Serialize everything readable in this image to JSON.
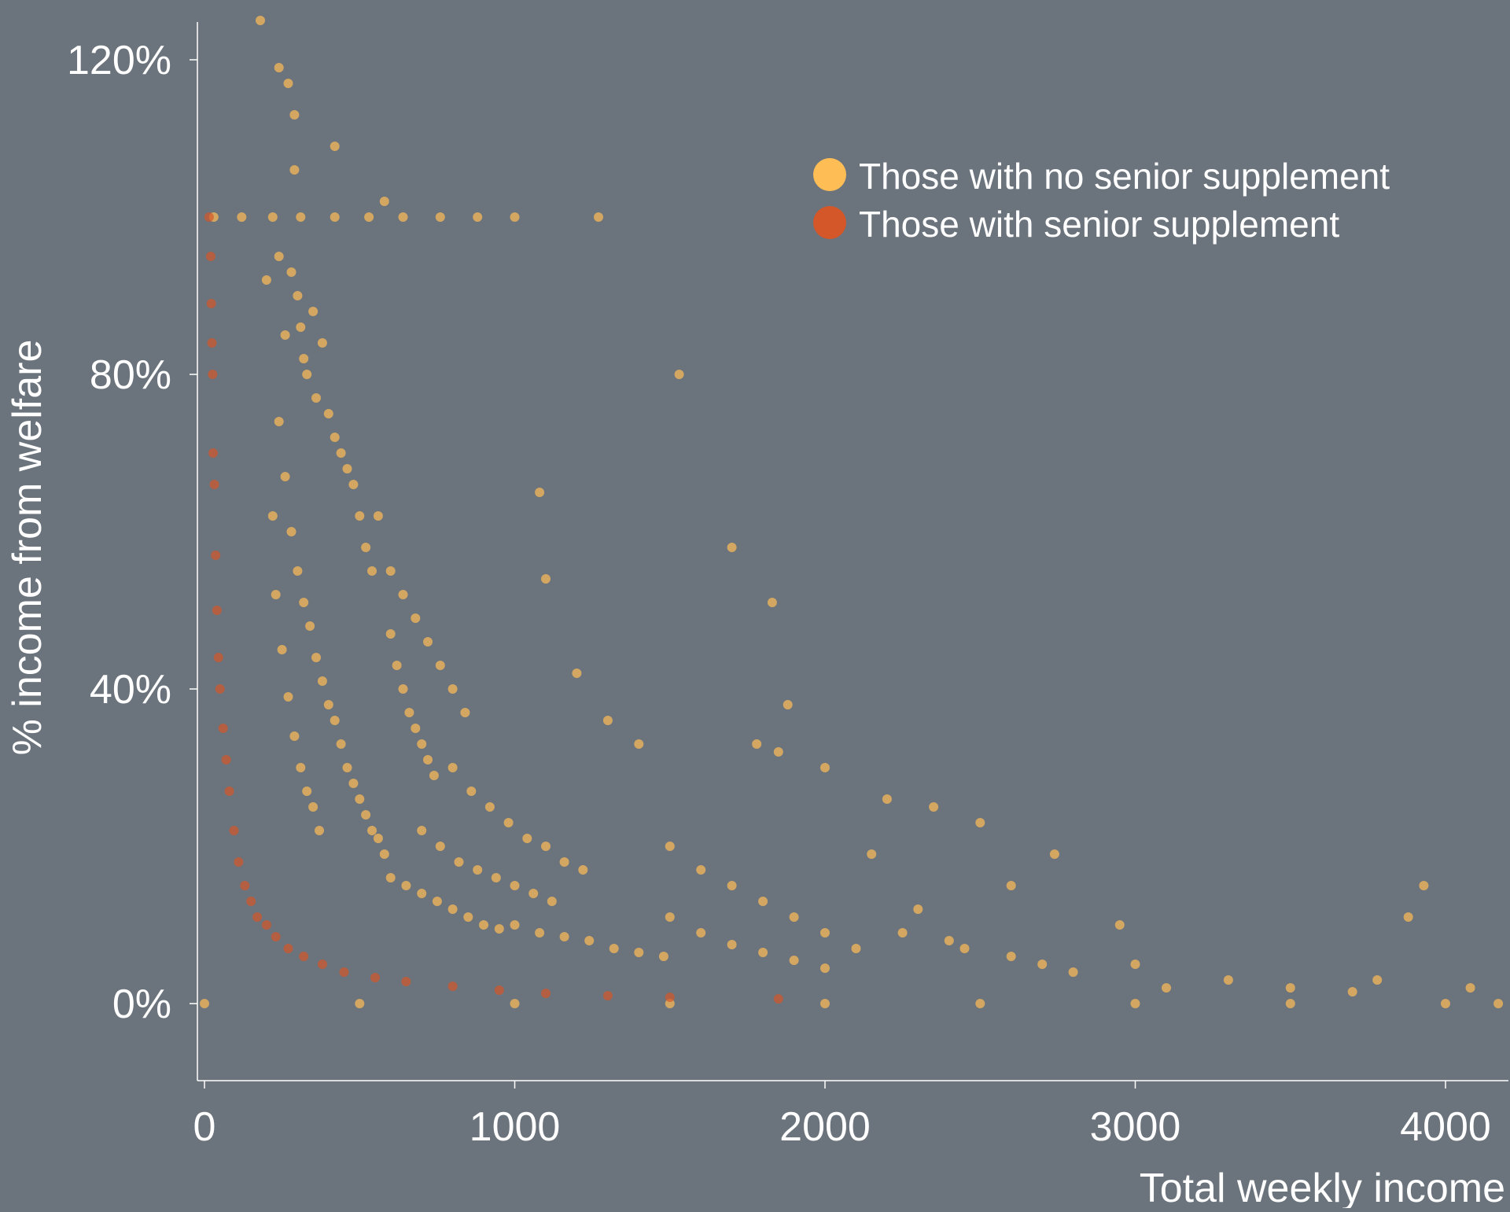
{
  "background_color": "#6b737c",
  "chart_data": {
    "type": "scatter",
    "title": "",
    "xlabel": "Total weekly income",
    "ylabel": "% income from welfare",
    "xlim": [
      -30,
      4200
    ],
    "ylim": [
      -0.1,
      1.25
    ],
    "x_ticks": [
      0,
      1000,
      2000,
      3000,
      4000
    ],
    "x_tick_labels": [
      "0",
      "1000",
      "2000",
      "3000",
      "4000"
    ],
    "y_ticks": [
      0,
      0.4,
      0.8,
      1.2
    ],
    "y_tick_labels": [
      "0%",
      "40%",
      "80%",
      "120%"
    ],
    "grid": false,
    "legend_position": "top-right",
    "series": [
      {
        "name": "Those with no senior supplement",
        "color": "#ffbe55",
        "points": [
          [
            30,
            1.0
          ],
          [
            120,
            1.0
          ],
          [
            220,
            1.0
          ],
          [
            310,
            1.0
          ],
          [
            420,
            1.0
          ],
          [
            530,
            1.0
          ],
          [
            640,
            1.0
          ],
          [
            760,
            1.0
          ],
          [
            880,
            1.0
          ],
          [
            1000,
            1.0
          ],
          [
            1270,
            1.0
          ],
          [
            180,
            1.25
          ],
          [
            240,
            1.19
          ],
          [
            270,
            1.17
          ],
          [
            290,
            1.13
          ],
          [
            420,
            1.09
          ],
          [
            580,
            1.02
          ],
          [
            290,
            1.06
          ],
          [
            200,
            0.92
          ],
          [
            240,
            0.95
          ],
          [
            260,
            0.85
          ],
          [
            280,
            0.93
          ],
          [
            300,
            0.9
          ],
          [
            310,
            0.86
          ],
          [
            320,
            0.82
          ],
          [
            330,
            0.8
          ],
          [
            350,
            0.88
          ],
          [
            360,
            0.77
          ],
          [
            380,
            0.84
          ],
          [
            400,
            0.75
          ],
          [
            420,
            0.72
          ],
          [
            440,
            0.7
          ],
          [
            460,
            0.68
          ],
          [
            480,
            0.66
          ],
          [
            500,
            0.62
          ],
          [
            520,
            0.58
          ],
          [
            540,
            0.55
          ],
          [
            240,
            0.74
          ],
          [
            260,
            0.67
          ],
          [
            280,
            0.6
          ],
          [
            300,
            0.55
          ],
          [
            320,
            0.51
          ],
          [
            340,
            0.48
          ],
          [
            360,
            0.44
          ],
          [
            380,
            0.41
          ],
          [
            400,
            0.38
          ],
          [
            220,
            0.62
          ],
          [
            230,
            0.52
          ],
          [
            250,
            0.45
          ],
          [
            270,
            0.39
          ],
          [
            290,
            0.34
          ],
          [
            310,
            0.3
          ],
          [
            330,
            0.27
          ],
          [
            350,
            0.25
          ],
          [
            370,
            0.22
          ],
          [
            420,
            0.36
          ],
          [
            440,
            0.33
          ],
          [
            460,
            0.3
          ],
          [
            480,
            0.28
          ],
          [
            500,
            0.26
          ],
          [
            520,
            0.24
          ],
          [
            540,
            0.22
          ],
          [
            560,
            0.21
          ],
          [
            580,
            0.19
          ],
          [
            600,
            0.47
          ],
          [
            620,
            0.43
          ],
          [
            640,
            0.4
          ],
          [
            660,
            0.37
          ],
          [
            680,
            0.35
          ],
          [
            700,
            0.33
          ],
          [
            720,
            0.31
          ],
          [
            740,
            0.29
          ],
          [
            560,
            0.62
          ],
          [
            600,
            0.55
          ],
          [
            640,
            0.52
          ],
          [
            680,
            0.49
          ],
          [
            720,
            0.46
          ],
          [
            760,
            0.43
          ],
          [
            800,
            0.4
          ],
          [
            840,
            0.37
          ],
          [
            600,
            0.16
          ],
          [
            650,
            0.15
          ],
          [
            700,
            0.14
          ],
          [
            750,
            0.13
          ],
          [
            800,
            0.12
          ],
          [
            850,
            0.11
          ],
          [
            900,
            0.1
          ],
          [
            950,
            0.095
          ],
          [
            700,
            0.22
          ],
          [
            760,
            0.2
          ],
          [
            820,
            0.18
          ],
          [
            880,
            0.17
          ],
          [
            940,
            0.16
          ],
          [
            1000,
            0.15
          ],
          [
            1060,
            0.14
          ],
          [
            1120,
            0.13
          ],
          [
            800,
            0.3
          ],
          [
            860,
            0.27
          ],
          [
            920,
            0.25
          ],
          [
            980,
            0.23
          ],
          [
            1040,
            0.21
          ],
          [
            1100,
            0.2
          ],
          [
            1160,
            0.18
          ],
          [
            1220,
            0.17
          ],
          [
            1000,
            0.1
          ],
          [
            1080,
            0.09
          ],
          [
            1160,
            0.085
          ],
          [
            1240,
            0.08
          ],
          [
            1320,
            0.07
          ],
          [
            1400,
            0.065
          ],
          [
            1480,
            0.06
          ],
          [
            1100,
            0.54
          ],
          [
            1080,
            0.65
          ],
          [
            1200,
            0.42
          ],
          [
            1300,
            0.36
          ],
          [
            1400,
            0.33
          ],
          [
            1530,
            0.8
          ],
          [
            1700,
            0.58
          ],
          [
            1500,
            0.2
          ],
          [
            1600,
            0.17
          ],
          [
            1700,
            0.15
          ],
          [
            1800,
            0.13
          ],
          [
            1900,
            0.11
          ],
          [
            2000,
            0.09
          ],
          [
            2100,
            0.07
          ],
          [
            1500,
            0.11
          ],
          [
            1600,
            0.09
          ],
          [
            1700,
            0.075
          ],
          [
            1800,
            0.065
          ],
          [
            1900,
            0.055
          ],
          [
            2000,
            0.045
          ],
          [
            1830,
            0.51
          ],
          [
            1880,
            0.38
          ],
          [
            1780,
            0.33
          ],
          [
            1850,
            0.32
          ],
          [
            2000,
            0.3
          ],
          [
            2200,
            0.26
          ],
          [
            2350,
            0.25
          ],
          [
            2150,
            0.19
          ],
          [
            2300,
            0.12
          ],
          [
            2500,
            0.23
          ],
          [
            2600,
            0.15
          ],
          [
            2740,
            0.19
          ],
          [
            2950,
            0.1
          ],
          [
            3000,
            0.05
          ],
          [
            2400,
            0.08
          ],
          [
            2600,
            0.06
          ],
          [
            2800,
            0.04
          ],
          [
            3100,
            0.02
          ],
          [
            3300,
            0.03
          ],
          [
            3500,
            0.02
          ],
          [
            3700,
            0.015
          ],
          [
            3780,
            0.03
          ],
          [
            3930,
            0.15
          ],
          [
            3880,
            0.11
          ],
          [
            4080,
            0.02
          ],
          [
            2250,
            0.09
          ],
          [
            2450,
            0.07
          ],
          [
            2700,
            0.05
          ],
          [
            0,
            0.0
          ],
          [
            500,
            0.0
          ],
          [
            1000,
            0.0
          ],
          [
            1500,
            0.0
          ],
          [
            2000,
            0.0
          ],
          [
            2500,
            0.0
          ],
          [
            3000,
            0.0
          ],
          [
            3500,
            0.0
          ],
          [
            4000,
            0.0
          ],
          [
            4170,
            0.0
          ]
        ]
      },
      {
        "name": "Those with senior supplement",
        "color": "#d4572a",
        "points": [
          [
            15,
            1.0
          ],
          [
            20,
            0.95
          ],
          [
            22,
            0.89
          ],
          [
            24,
            0.84
          ],
          [
            26,
            0.8
          ],
          [
            28,
            0.7
          ],
          [
            32,
            0.66
          ],
          [
            36,
            0.57
          ],
          [
            40,
            0.5
          ],
          [
            45,
            0.44
          ],
          [
            50,
            0.4
          ],
          [
            60,
            0.35
          ],
          [
            70,
            0.31
          ],
          [
            80,
            0.27
          ],
          [
            95,
            0.22
          ],
          [
            110,
            0.18
          ],
          [
            130,
            0.15
          ],
          [
            150,
            0.13
          ],
          [
            170,
            0.11
          ],
          [
            200,
            0.1
          ],
          [
            230,
            0.085
          ],
          [
            270,
            0.07
          ],
          [
            320,
            0.06
          ],
          [
            380,
            0.05
          ],
          [
            450,
            0.04
          ],
          [
            550,
            0.033
          ],
          [
            650,
            0.028
          ],
          [
            800,
            0.022
          ],
          [
            950,
            0.017
          ],
          [
            1100,
            0.013
          ],
          [
            1300,
            0.01
          ],
          [
            1500,
            0.008
          ],
          [
            1850,
            0.006
          ]
        ]
      }
    ]
  }
}
